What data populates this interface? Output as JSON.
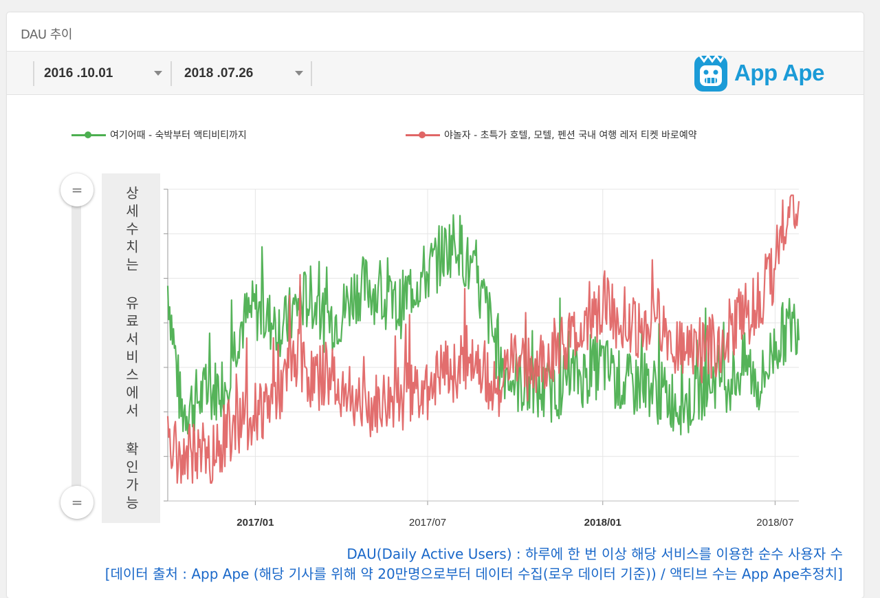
{
  "card": {
    "title": "DAU 추이"
  },
  "toolbar": {
    "start_date": "2016 .10.01",
    "end_date": "2018 .07.26",
    "logo_text": "App Ape",
    "logo_icon": "app-ape-monkey-icon"
  },
  "side_label": "상세수치는 유료서비스에서 확인가능",
  "footnotes": {
    "line1": "DAU(Daily Active Users) : 하루에 한 번 이상 해당 서비스를 이용한 순수 사용자 수",
    "line2": "[데이터 출처 : App Ape (해당 기사를 위해 약 20만명으로부터 데이터 수집(로우 데이터 기준)) / 액티브 수는 App Ape추정치]"
  },
  "colors": {
    "green": "#4caf50",
    "red": "#e06666",
    "grid": "#e5e5e5",
    "brand": "#1b9bd7",
    "footnote": "#1a68c9"
  },
  "chart_data": {
    "type": "line",
    "x_range": [
      "2016-10-01",
      "2018-07-26"
    ],
    "x_ticks": [
      "2017/01",
      "2017/07",
      "2018/01",
      "2018/07"
    ],
    "x_tick_dates": [
      "2017-01-01",
      "2017-07-01",
      "2018-01-01",
      "2018-07-01"
    ],
    "y_tick_labels": "hidden",
    "grid": true,
    "legend_position": "top",
    "series": [
      {
        "name": "여기어때 - 숙박부터 액티비티까지",
        "color": "#4caf50",
        "points": [
          [
            "2016-10-01",
            3.6
          ],
          [
            "2016-10-15",
            1.5
          ],
          [
            "2016-11-01",
            1.7
          ],
          [
            "2016-11-15",
            1.8
          ],
          [
            "2016-12-01",
            2.0
          ],
          [
            "2016-12-15",
            2.9
          ],
          [
            "2017-01-01",
            3.2
          ],
          [
            "2017-01-15",
            3.0
          ],
          [
            "2017-02-01",
            2.9
          ],
          [
            "2017-02-15",
            3.3
          ],
          [
            "2017-03-01",
            3.4
          ],
          [
            "2017-03-15",
            3.0
          ],
          [
            "2017-04-01",
            3.1
          ],
          [
            "2017-04-15",
            3.5
          ],
          [
            "2017-05-01",
            3.6
          ],
          [
            "2017-05-15",
            3.3
          ],
          [
            "2017-06-01",
            3.2
          ],
          [
            "2017-06-15",
            3.6
          ],
          [
            "2017-07-01",
            3.8
          ],
          [
            "2017-07-15",
            4.1
          ],
          [
            "2017-08-01",
            4.4
          ],
          [
            "2017-08-15",
            3.8
          ],
          [
            "2017-09-01",
            3.2
          ],
          [
            "2017-09-15",
            2.3
          ],
          [
            "2017-10-01",
            2.0
          ],
          [
            "2017-10-15",
            1.9
          ],
          [
            "2017-11-01",
            1.8
          ],
          [
            "2017-11-15",
            1.9
          ],
          [
            "2017-12-01",
            2.1
          ],
          [
            "2017-12-15",
            2.1
          ],
          [
            "2018-01-01",
            2.3
          ],
          [
            "2018-01-15",
            2.0
          ],
          [
            "2018-02-01",
            1.9
          ],
          [
            "2018-02-15",
            2.0
          ],
          [
            "2018-03-01",
            1.8
          ],
          [
            "2018-03-15",
            1.7
          ],
          [
            "2018-04-01",
            1.6
          ],
          [
            "2018-04-15",
            1.9
          ],
          [
            "2018-05-01",
            2.1
          ],
          [
            "2018-05-15",
            2.0
          ],
          [
            "2018-06-01",
            2.3
          ],
          [
            "2018-06-15",
            1.9
          ],
          [
            "2018-07-01",
            2.6
          ],
          [
            "2018-07-15",
            2.9
          ],
          [
            "2018-07-26",
            3.0
          ]
        ]
      },
      {
        "name": "야놀자 - 초특가 호텔, 모텔, 펜션 국내 여행 레저 티켓 바로예약",
        "color": "#e06666",
        "points": [
          [
            "2016-10-01",
            0.9
          ],
          [
            "2016-10-15",
            0.7
          ],
          [
            "2016-11-01",
            0.8
          ],
          [
            "2016-11-15",
            0.7
          ],
          [
            "2016-12-01",
            1.1
          ],
          [
            "2016-12-15",
            1.3
          ],
          [
            "2017-01-01",
            1.5
          ],
          [
            "2017-01-15",
            1.6
          ],
          [
            "2017-02-01",
            1.9
          ],
          [
            "2017-02-15",
            2.4
          ],
          [
            "2017-03-01",
            2.0
          ],
          [
            "2017-03-15",
            2.1
          ],
          [
            "2017-04-01",
            1.9
          ],
          [
            "2017-04-15",
            1.6
          ],
          [
            "2017-05-01",
            1.5
          ],
          [
            "2017-05-15",
            1.6
          ],
          [
            "2017-06-01",
            1.7
          ],
          [
            "2017-06-15",
            1.8
          ],
          [
            "2017-07-01",
            1.9
          ],
          [
            "2017-07-15",
            2.1
          ],
          [
            "2017-08-01",
            2.2
          ],
          [
            "2017-08-15",
            2.5
          ],
          [
            "2017-09-01",
            2.1
          ],
          [
            "2017-09-15",
            1.9
          ],
          [
            "2017-10-01",
            2.4
          ],
          [
            "2017-10-15",
            2.2
          ],
          [
            "2017-11-01",
            2.3
          ],
          [
            "2017-11-15",
            2.6
          ],
          [
            "2017-12-01",
            2.7
          ],
          [
            "2017-12-15",
            3.0
          ],
          [
            "2018-01-01",
            3.3
          ],
          [
            "2018-01-15",
            3.1
          ],
          [
            "2018-02-01",
            3.0
          ],
          [
            "2018-02-15",
            2.8
          ],
          [
            "2018-03-01",
            3.0
          ],
          [
            "2018-03-15",
            2.6
          ],
          [
            "2018-04-01",
            2.7
          ],
          [
            "2018-04-15",
            2.5
          ],
          [
            "2018-05-01",
            2.6
          ],
          [
            "2018-05-15",
            2.9
          ],
          [
            "2018-06-01",
            3.1
          ],
          [
            "2018-06-15",
            3.4
          ],
          [
            "2018-07-01",
            3.9
          ],
          [
            "2018-07-15",
            5.0
          ],
          [
            "2018-07-26",
            4.6
          ]
        ]
      }
    ]
  }
}
